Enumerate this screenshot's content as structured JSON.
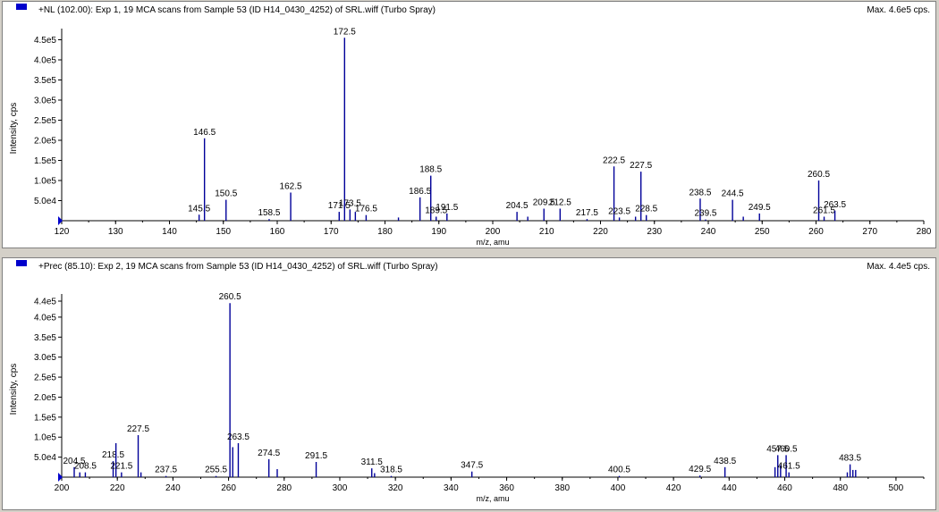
{
  "colors": {
    "series": "#000099",
    "axis": "#000000",
    "text": "#000000",
    "marker": "#0000cc"
  },
  "chart_data": [
    {
      "type": "bar",
      "title": "+NL (102.00): Exp 1, 19 MCA scans from Sample 53 (ID H14_0430_4252) of SRL.wiff (Turbo Spray)",
      "max_label": "Max. 4.6e5 cps.",
      "xlabel": "m/z, amu",
      "ylabel": "Intensity, cps",
      "xlim": [
        120,
        280
      ],
      "ylim": [
        0,
        460000
      ],
      "xticks": [
        120,
        130,
        140,
        150,
        160,
        170,
        180,
        190,
        200,
        210,
        220,
        230,
        240,
        250,
        260,
        270,
        280
      ],
      "yticks": [
        {
          "v": 50000,
          "label": "5.0e4"
        },
        {
          "v": 100000,
          "label": "1.0e5"
        },
        {
          "v": 150000,
          "label": "1.5e5"
        },
        {
          "v": 200000,
          "label": "2.0e5"
        },
        {
          "v": 250000,
          "label": "2.5e5"
        },
        {
          "v": 300000,
          "label": "3.0e5"
        },
        {
          "v": 350000,
          "label": "3.5e5"
        },
        {
          "v": 400000,
          "label": "4.0e5"
        },
        {
          "v": 450000,
          "label": "4.5e5"
        }
      ],
      "peaks": [
        {
          "x": 145.5,
          "y": 15000,
          "label": "145.5"
        },
        {
          "x": 146.5,
          "y": 205000,
          "label": "146.5"
        },
        {
          "x": 150.5,
          "y": 52000,
          "label": "150.5"
        },
        {
          "x": 158.5,
          "y": 4000,
          "label": "158.5"
        },
        {
          "x": 162.5,
          "y": 70000,
          "label": "162.5"
        },
        {
          "x": 171.5,
          "y": 22000,
          "label": "171.5"
        },
        {
          "x": 172.5,
          "y": 455000,
          "label": "172.5"
        },
        {
          "x": 173.5,
          "y": 28000,
          "label": "173.5"
        },
        {
          "x": 174.5,
          "y": 22000,
          "label": ""
        },
        {
          "x": 176.5,
          "y": 14000,
          "label": "176.5"
        },
        {
          "x": 182.5,
          "y": 8000,
          "label": ""
        },
        {
          "x": 186.5,
          "y": 58000,
          "label": "186.5"
        },
        {
          "x": 188.5,
          "y": 112000,
          "label": "188.5"
        },
        {
          "x": 189.5,
          "y": 10000,
          "label": "189.5"
        },
        {
          "x": 191.5,
          "y": 18000,
          "label": "191.5"
        },
        {
          "x": 204.5,
          "y": 22000,
          "label": "204.5"
        },
        {
          "x": 206.5,
          "y": 10000,
          "label": ""
        },
        {
          "x": 209.5,
          "y": 30000,
          "label": "209.5"
        },
        {
          "x": 212.5,
          "y": 30000,
          "label": "212.5"
        },
        {
          "x": 217.5,
          "y": 4000,
          "label": "217.5"
        },
        {
          "x": 222.5,
          "y": 135000,
          "label": "222.5"
        },
        {
          "x": 223.5,
          "y": 8000,
          "label": "223.5"
        },
        {
          "x": 226.5,
          "y": 10000,
          "label": ""
        },
        {
          "x": 227.5,
          "y": 122000,
          "label": "227.5"
        },
        {
          "x": 228.5,
          "y": 14000,
          "label": "228.5"
        },
        {
          "x": 238.5,
          "y": 55000,
          "label": "238.5"
        },
        {
          "x": 239.5,
          "y": 3000,
          "label": "239.5"
        },
        {
          "x": 244.5,
          "y": 52000,
          "label": "244.5"
        },
        {
          "x": 246.5,
          "y": 10000,
          "label": ""
        },
        {
          "x": 249.5,
          "y": 18000,
          "label": "249.5"
        },
        {
          "x": 260.5,
          "y": 100000,
          "label": "260.5"
        },
        {
          "x": 261.5,
          "y": 10000,
          "label": "261.5"
        },
        {
          "x": 263.5,
          "y": 25000,
          "label": "263.5"
        }
      ]
    },
    {
      "type": "bar",
      "title": "+Prec (85.10): Exp 2, 19 MCA scans from Sample 53 (ID H14_0430_4252) of SRL.wiff (Turbo Spray)",
      "max_label": "Max. 4.4e5 cps.",
      "xlabel": "m/z, amu",
      "ylabel": "Intensity, cps",
      "xlim": [
        200,
        510
      ],
      "ylim": [
        0,
        440000
      ],
      "xticks": [
        200,
        220,
        240,
        260,
        280,
        300,
        320,
        340,
        360,
        380,
        400,
        420,
        440,
        460,
        480,
        500
      ],
      "yticks": [
        {
          "v": 50000,
          "label": "5.0e4"
        },
        {
          "v": 100000,
          "label": "1.0e5"
        },
        {
          "v": 150000,
          "label": "1.5e5"
        },
        {
          "v": 200000,
          "label": "2.0e5"
        },
        {
          "v": 250000,
          "label": "2.5e5"
        },
        {
          "v": 300000,
          "label": "3.0e5"
        },
        {
          "v": 350000,
          "label": "3.5e5"
        },
        {
          "v": 400000,
          "label": "4.0e5"
        },
        {
          "v": 440000,
          "label": "4.4e5"
        }
      ],
      "peaks": [
        {
          "x": 204.5,
          "y": 25000,
          "label": "204.5"
        },
        {
          "x": 206.5,
          "y": 12000,
          "label": ""
        },
        {
          "x": 208.5,
          "y": 12000,
          "label": "208.5"
        },
        {
          "x": 218.5,
          "y": 40000,
          "label": "218.5"
        },
        {
          "x": 219.5,
          "y": 85000,
          "label": ""
        },
        {
          "x": 221.5,
          "y": 12000,
          "label": "221.5"
        },
        {
          "x": 227.5,
          "y": 105000,
          "label": "227.5"
        },
        {
          "x": 228.5,
          "y": 12000,
          "label": ""
        },
        {
          "x": 237.5,
          "y": 3000,
          "label": "237.5"
        },
        {
          "x": 255.5,
          "y": 3000,
          "label": "255.5"
        },
        {
          "x": 260.5,
          "y": 435000,
          "label": "260.5"
        },
        {
          "x": 261.5,
          "y": 75000,
          "label": ""
        },
        {
          "x": 263.5,
          "y": 85000,
          "label": "263.5"
        },
        {
          "x": 274.5,
          "y": 45000,
          "label": "274.5"
        },
        {
          "x": 277.5,
          "y": 20000,
          "label": ""
        },
        {
          "x": 291.5,
          "y": 38000,
          "label": "291.5"
        },
        {
          "x": 311.5,
          "y": 22000,
          "label": "311.5"
        },
        {
          "x": 312.5,
          "y": 10000,
          "label": ""
        },
        {
          "x": 318.5,
          "y": 3000,
          "label": "318.5"
        },
        {
          "x": 347.5,
          "y": 14000,
          "label": "347.5"
        },
        {
          "x": 400.5,
          "y": 3000,
          "label": "400.5"
        },
        {
          "x": 429.5,
          "y": 4000,
          "label": "429.5"
        },
        {
          "x": 438.5,
          "y": 25000,
          "label": "438.5"
        },
        {
          "x": 456.5,
          "y": 25000,
          "label": ""
        },
        {
          "x": 457.5,
          "y": 55000,
          "label": "457.5"
        },
        {
          "x": 458.5,
          "y": 30000,
          "label": ""
        },
        {
          "x": 460.5,
          "y": 55000,
          "label": "460.5"
        },
        {
          "x": 461.5,
          "y": 12000,
          "label": "461.5"
        },
        {
          "x": 482.5,
          "y": 12000,
          "label": ""
        },
        {
          "x": 483.5,
          "y": 32000,
          "label": "483.5"
        },
        {
          "x": 484.5,
          "y": 18000,
          "label": ""
        },
        {
          "x": 485.5,
          "y": 18000,
          "label": ""
        }
      ]
    }
  ]
}
